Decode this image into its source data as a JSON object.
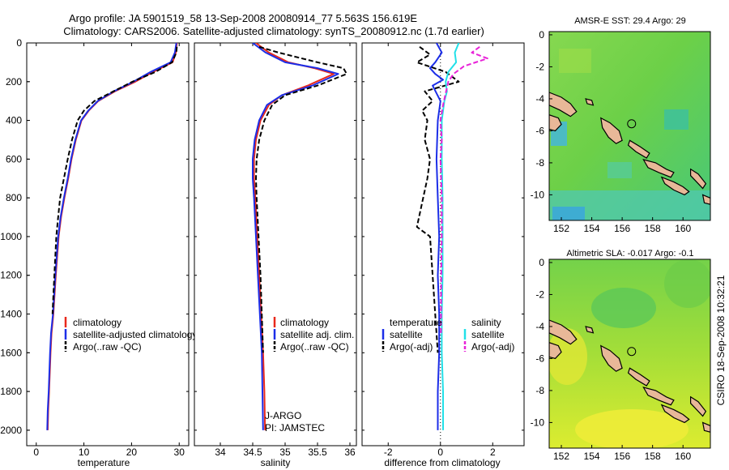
{
  "header": {
    "line1": "Argo profile: JA 5901519_58 13-Sep-2008 20080914_77 5.563S 156.619E",
    "line2": "Climatology: CARS2006. Satellite-adjusted climatology: synTS_20080912.nc (1.7d earlier)"
  },
  "credit": "CSIRO 18-Sep-2008 10:32:21",
  "colors": {
    "climatology": "#e8291c",
    "satellite": "#1c2ee8",
    "argo": "#000000",
    "salinity_satellite": "#22e0e8",
    "salinity_argo": "#e822d8",
    "land": "#e8b898"
  },
  "chart_data": [
    {
      "type": "line",
      "id": "temperature",
      "xlabel": "temperature",
      "ylabel": "",
      "xlim": [
        -2,
        32
      ],
      "ylim": [
        2080,
        0
      ],
      "xticks": [
        "0",
        "10",
        "20",
        "30"
      ],
      "yticks": [
        "0",
        "200",
        "400",
        "600",
        "800",
        "1000",
        "1200",
        "1400",
        "1600",
        "1800",
        "2000"
      ],
      "legend": [
        "climatology",
        "satellite-adjusted climatology",
        "Argo(..raw -QC)"
      ],
      "series": [
        {
          "name": "climatology",
          "x": [
            29.5,
            29.3,
            28.6,
            24.5,
            20.8,
            16.5,
            13.0,
            11.0,
            9.5,
            8.3,
            7.4,
            6.7,
            5.9,
            5.2,
            4.7,
            4.1,
            3.6,
            3.2,
            3.0,
            2.7,
            2.5,
            2.4
          ],
          "y": [
            0,
            50,
            100,
            150,
            200,
            250,
            300,
            350,
            400,
            500,
            600,
            700,
            800,
            900,
            1000,
            1200,
            1400,
            1500,
            1600,
            1800,
            1900,
            2000
          ]
        },
        {
          "name": "satellite-adjusted climatology",
          "x": [
            29.4,
            29.1,
            28.2,
            24.0,
            20.4,
            16.3,
            12.9,
            10.9,
            9.4,
            8.2,
            7.3,
            6.6,
            5.8,
            5.1,
            4.6,
            4.0,
            3.5,
            3.1,
            2.9,
            2.6,
            2.4,
            2.3
          ],
          "y": [
            0,
            50,
            100,
            150,
            200,
            250,
            300,
            350,
            400,
            500,
            600,
            700,
            800,
            900,
            1000,
            1200,
            1400,
            1500,
            1600,
            1800,
            1900,
            2000
          ]
        },
        {
          "name": "Argo(..raw -QC)",
          "x": [
            29.5,
            29.4,
            28.5,
            25.0,
            20.2,
            16.2,
            12.2,
            10.0,
            8.7,
            7.5,
            6.6,
            5.8,
            5.0,
            4.6,
            4.2,
            3.8,
            3.4
          ],
          "y": [
            20,
            50,
            100,
            150,
            200,
            250,
            300,
            350,
            400,
            500,
            600,
            700,
            800,
            900,
            1000,
            1200,
            1400
          ]
        }
      ]
    },
    {
      "type": "line",
      "id": "salinity",
      "xlabel": "salinity",
      "ylabel": "",
      "xlim": [
        33.6,
        36.1
      ],
      "ylim": [
        2080,
        0
      ],
      "xticks": [
        "34",
        "34.5",
        "35",
        "35.5",
        "36"
      ],
      "legend": [
        "climatology",
        "satellite adj. clim.",
        "Argo(..raw -QC)"
      ],
      "annotation": [
        "J-ARGO",
        "PI: JAMSTEC"
      ],
      "series": [
        {
          "name": "climatology",
          "x": [
            34.55,
            34.75,
            35.05,
            35.45,
            35.75,
            35.35,
            34.95,
            34.75,
            34.62,
            34.55,
            34.52,
            34.52,
            34.54,
            34.57,
            34.6,
            34.63,
            34.66,
            34.68,
            34.69
          ],
          "y": [
            0,
            50,
            100,
            130,
            160,
            220,
            270,
            320,
            400,
            500,
            600,
            700,
            800,
            1000,
            1200,
            1400,
            1600,
            1800,
            2000
          ]
        },
        {
          "name": "satellite adj. clim.",
          "x": [
            34.5,
            34.7,
            35.0,
            35.5,
            35.82,
            35.42,
            34.95,
            34.72,
            34.6,
            34.53,
            34.5,
            34.5,
            34.52,
            34.55,
            34.58,
            34.61,
            34.64,
            34.65,
            34.66
          ],
          "y": [
            0,
            50,
            100,
            130,
            160,
            220,
            270,
            320,
            400,
            500,
            600,
            700,
            800,
            1000,
            1200,
            1400,
            1600,
            1800,
            2000
          ]
        },
        {
          "name": "Argo(..raw -QC)",
          "x": [
            34.6,
            34.9,
            35.5,
            35.9,
            35.95,
            35.5,
            35.0,
            34.8,
            34.68,
            34.6,
            34.56,
            34.55,
            34.56,
            34.59,
            34.62,
            34.64,
            34.66
          ],
          "y": [
            20,
            50,
            100,
            130,
            160,
            220,
            270,
            320,
            400,
            500,
            600,
            700,
            800,
            1000,
            1200,
            1400,
            1600
          ]
        }
      ]
    },
    {
      "type": "line",
      "id": "difference",
      "xlabel": "difference from climatology",
      "ylabel": "",
      "xlim": [
        -3.0,
        3.2
      ],
      "ylim": [
        2080,
        0
      ],
      "xticks": [
        "-2",
        "0",
        "2"
      ],
      "legend_temperature": {
        "title": "temperature",
        "items": [
          "satellite",
          "Argo(-adj)"
        ]
      },
      "legend_salinity": {
        "title": "salinity",
        "items": [
          "satellite",
          "Argo(-adj)"
        ]
      },
      "series": [
        {
          "name": "temperature satellite",
          "x": [
            -0.15,
            0.05,
            -0.2,
            -0.4,
            -0.2,
            0.1,
            -0.3,
            -0.15,
            0.0,
            -0.1,
            -0.15,
            -0.1,
            -0.05,
            -0.1,
            -0.05,
            -0.05,
            -0.1,
            -0.1
          ],
          "y": [
            0,
            50,
            100,
            130,
            160,
            190,
            220,
            260,
            300,
            400,
            600,
            800,
            1000,
            1200,
            1400,
            1600,
            1800,
            2000
          ]
        },
        {
          "name": "temperature Argo(-adj)",
          "x": [
            -0.8,
            -0.4,
            -0.9,
            0.2,
            0.7,
            -0.6,
            -0.3,
            -0.7,
            -0.5,
            -0.6,
            -0.4,
            -0.5,
            -0.9,
            -0.4,
            -0.3,
            -0.2,
            -0.1
          ],
          "y": [
            20,
            60,
            100,
            150,
            200,
            250,
            300,
            350,
            400,
            500,
            600,
            700,
            950,
            1000,
            1200,
            1400,
            1600
          ]
        },
        {
          "name": "salinity satellite",
          "x": [
            0.7,
            0.55,
            0.6,
            0.3,
            0.2,
            0.25,
            0.15,
            0.1,
            0.05,
            0.05,
            0.05,
            0.08,
            0.08,
            0.08,
            0.05,
            0.05,
            0.1,
            0.1
          ],
          "y": [
            0,
            50,
            100,
            150,
            200,
            250,
            300,
            350,
            400,
            500,
            600,
            800,
            1000,
            1200,
            1400,
            1600,
            1800,
            2000
          ]
        },
        {
          "name": "salinity Argo(-adj)",
          "x": [
            1.5,
            1.2,
            1.8,
            0.9,
            0.5,
            0.3,
            0.2,
            0.1,
            0.0,
            0.05,
            0.0,
            0.05,
            0.05,
            0.03,
            0.02
          ],
          "y": [
            20,
            50,
            80,
            120,
            160,
            200,
            260,
            320,
            400,
            500,
            600,
            800,
            1000,
            1200,
            1500
          ]
        }
      ]
    },
    {
      "type": "heatmap",
      "id": "sst-map",
      "title": "AMSR-E SST: 29.4 Argo: 29",
      "xlim": [
        151.2,
        161.8
      ],
      "ylim": [
        -11.6,
        0.2
      ],
      "xticks": [
        "152",
        "154",
        "156",
        "158",
        "160"
      ],
      "yticks": [
        "0",
        "-2",
        "-4",
        "-6",
        "-8",
        "-10"
      ],
      "marker": {
        "x": 156.62,
        "y": -5.56
      }
    },
    {
      "type": "heatmap",
      "id": "sla-map",
      "title": "Altimetric SLA: -0.017 Argo: -0.1",
      "xlim": [
        151.2,
        161.8
      ],
      "ylim": [
        -11.6,
        0.2
      ],
      "xticks": [
        "152",
        "154",
        "156",
        "158",
        "160"
      ],
      "yticks": [
        "0",
        "-2",
        "-4",
        "-6",
        "-8",
        "-10"
      ],
      "marker": {
        "x": 156.62,
        "y": -5.56
      }
    }
  ]
}
